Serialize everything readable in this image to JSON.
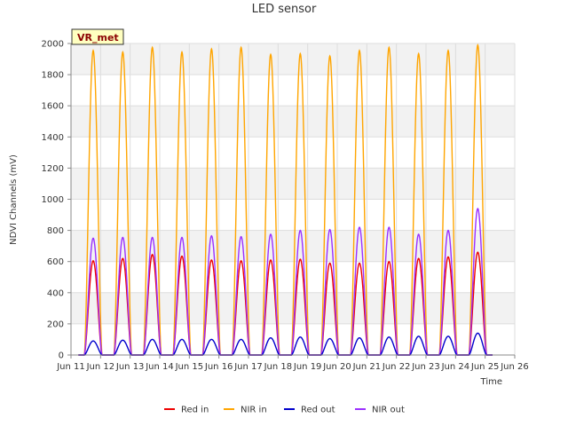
{
  "chart_data": {
    "type": "line",
    "title": "LED sensor",
    "xlabel": "Time",
    "ylabel": "NDVI Channels (mV)",
    "badge": "VR_met",
    "ylim": [
      0,
      2000
    ],
    "yticks": [
      0,
      200,
      400,
      600,
      800,
      1000,
      1200,
      1400,
      1600,
      1800,
      2000
    ],
    "xlim": [
      11,
      26
    ],
    "xticks": [
      {
        "day": 11,
        "label": "Jun 11"
      },
      {
        "day": 12,
        "label": "Jun 12"
      },
      {
        "day": 13,
        "label": "Jun 13"
      },
      {
        "day": 14,
        "label": "Jun 14"
      },
      {
        "day": 15,
        "label": "Jun 15"
      },
      {
        "day": 16,
        "label": "Jun 16"
      },
      {
        "day": 17,
        "label": "Jun 17"
      },
      {
        "day": 18,
        "label": "Jun 18"
      },
      {
        "day": 19,
        "label": "Jun 19"
      },
      {
        "day": 20,
        "label": "Jun 20"
      },
      {
        "day": 21,
        "label": "Jun 21"
      },
      {
        "day": 22,
        "label": "Jun 22"
      },
      {
        "day": 23,
        "label": "Jun 23"
      },
      {
        "day": 24,
        "label": "Jun 24"
      },
      {
        "day": 25,
        "label": "Jun 25"
      },
      {
        "day": 26,
        "label": "Jun 26"
      }
    ],
    "grid": true,
    "legend_position": "bottom",
    "daily_peak_days": [
      11.75,
      12.75,
      13.75,
      14.75,
      15.75,
      16.75,
      17.75,
      18.75,
      19.75,
      20.75,
      21.75,
      22.75,
      23.75,
      24.75
    ],
    "series": [
      {
        "name": "Red in",
        "color": "#ee0000",
        "daily_peaks": [
          605,
          620,
          645,
          635,
          610,
          605,
          610,
          615,
          590,
          590,
          600,
          620,
          630,
          660
        ]
      },
      {
        "name": "NIR in",
        "color": "#ffa500",
        "daily_peaks": [
          1955,
          1945,
          1975,
          1945,
          1965,
          1975,
          1930,
          1935,
          1920,
          1955,
          1975,
          1935,
          1955,
          1990
        ]
      },
      {
        "name": "Red out",
        "color": "#0000cc",
        "daily_peaks": [
          90,
          95,
          100,
          100,
          100,
          100,
          110,
          115,
          105,
          110,
          115,
          120,
          120,
          140
        ]
      },
      {
        "name": "NIR out",
        "color": "#9b30ff",
        "daily_peaks": [
          750,
          755,
          755,
          755,
          765,
          760,
          775,
          800,
          805,
          820,
          820,
          775,
          800,
          940
        ]
      }
    ]
  }
}
